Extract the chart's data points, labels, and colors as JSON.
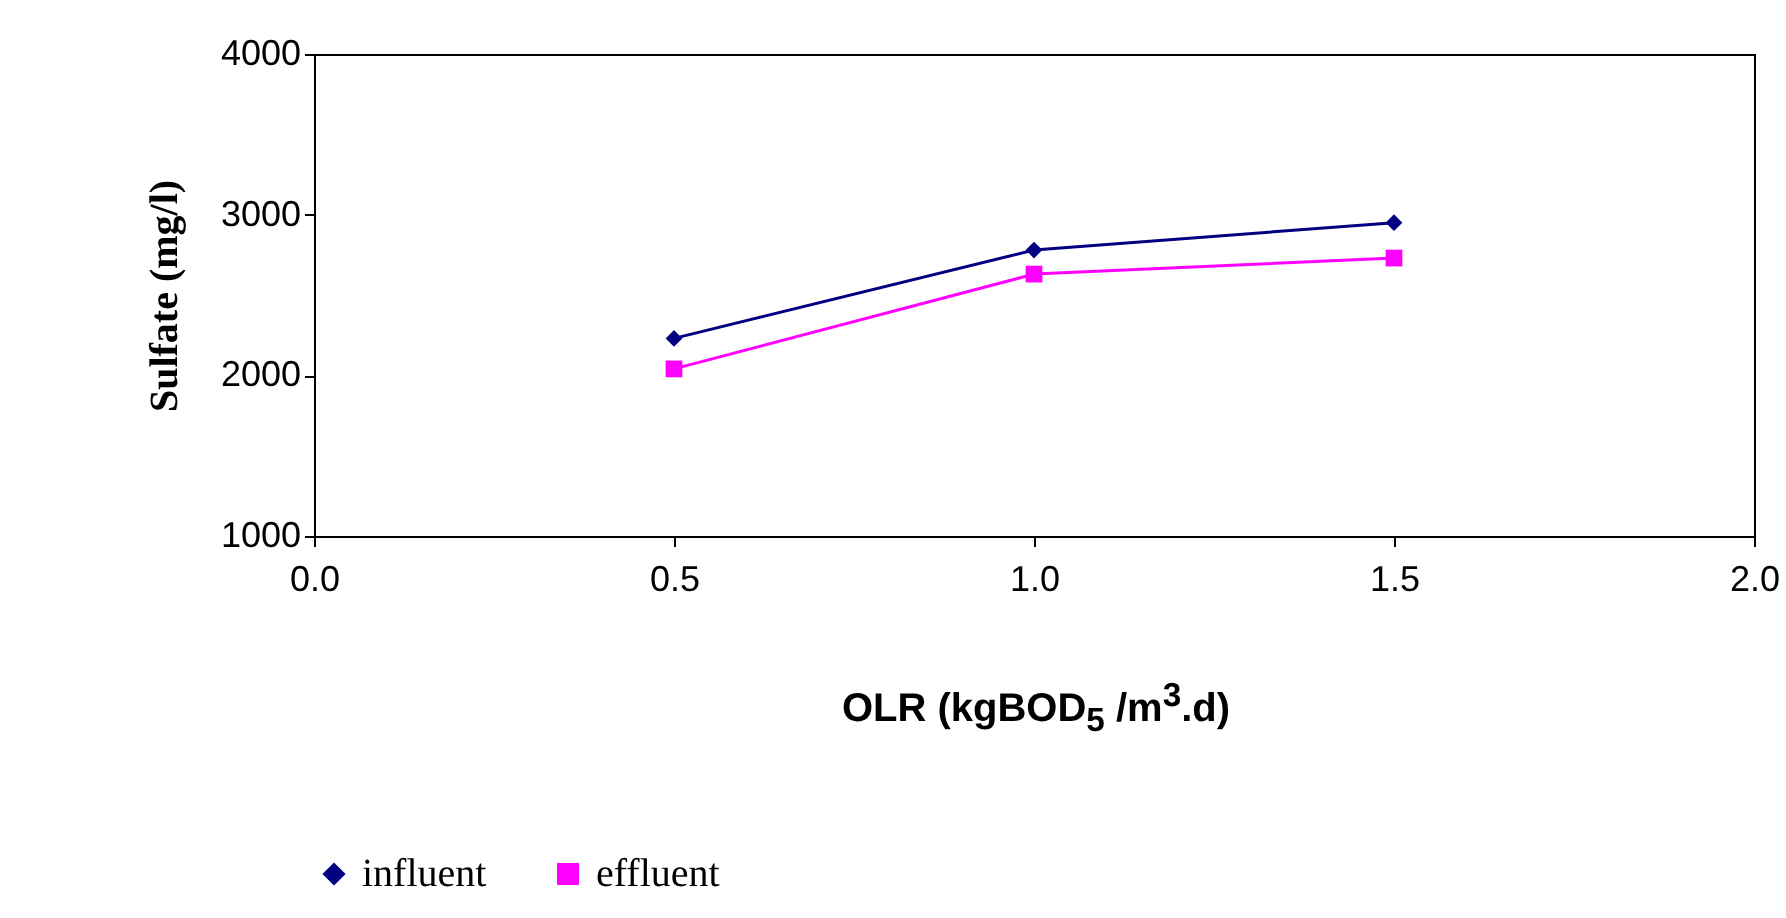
{
  "chart_data": {
    "type": "line",
    "xlabel": "OLR (kgBOD$_{5}$ /m$^{3}$.d)",
    "ylabel": "Sulfate (mg/l)",
    "x": [
      0.5,
      1.0,
      1.5
    ],
    "series": [
      {
        "name": "influent",
        "color": "#000080",
        "marker": "diamond",
        "values": [
          2230,
          2780,
          2950
        ]
      },
      {
        "name": "effluent",
        "color": "#ff00ff",
        "marker": "square",
        "values": [
          2040,
          2630,
          2730
        ]
      }
    ],
    "xlim": [
      0,
      2
    ],
    "xticks": [
      {
        "value": 0,
        "label": "0.0"
      },
      {
        "value": 0.5,
        "label": "0.5"
      },
      {
        "value": 1,
        "label": "1.0"
      },
      {
        "value": 1.5,
        "label": "1.5"
      },
      {
        "value": 2,
        "label": "2.0"
      }
    ],
    "ylim": [
      1000,
      4000
    ],
    "yticks": [
      1000,
      2000,
      3000,
      4000
    ],
    "grid": false,
    "legend": "bottom"
  }
}
